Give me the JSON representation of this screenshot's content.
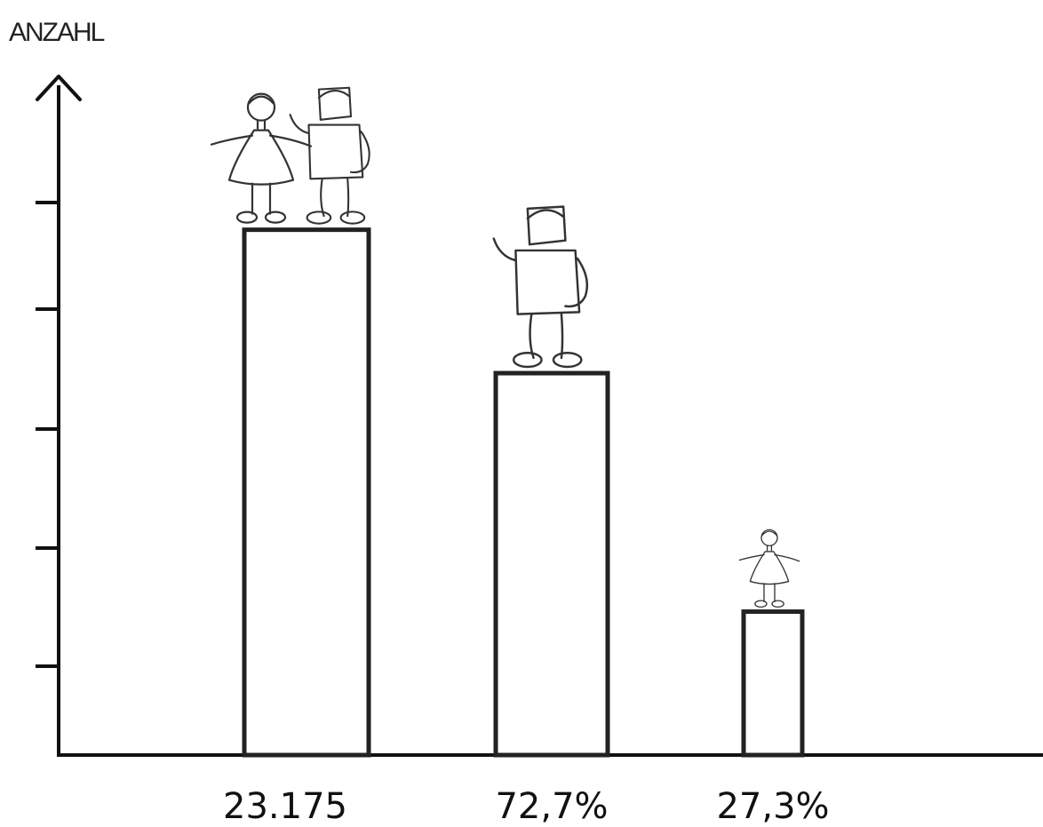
{
  "chart_data": {
    "type": "bar",
    "ylabel": "ANZAHL",
    "categories": [
      "23.175",
      "72,7%",
      "27,3%"
    ],
    "values": [
      23175,
      16848,
      6327
    ],
    "grid": false,
    "ylim": [
      0,
      29000
    ],
    "yticks_count": 5,
    "bar_labels": [
      "23.175",
      "72,7%",
      "27,3%"
    ],
    "figures": [
      "girl-and-boy-icon",
      "boy-icon",
      "girl-icon"
    ],
    "colors": {
      "axis": "#111111",
      "bar_stroke": "#222222",
      "bar_fill": "#ffffff"
    }
  }
}
